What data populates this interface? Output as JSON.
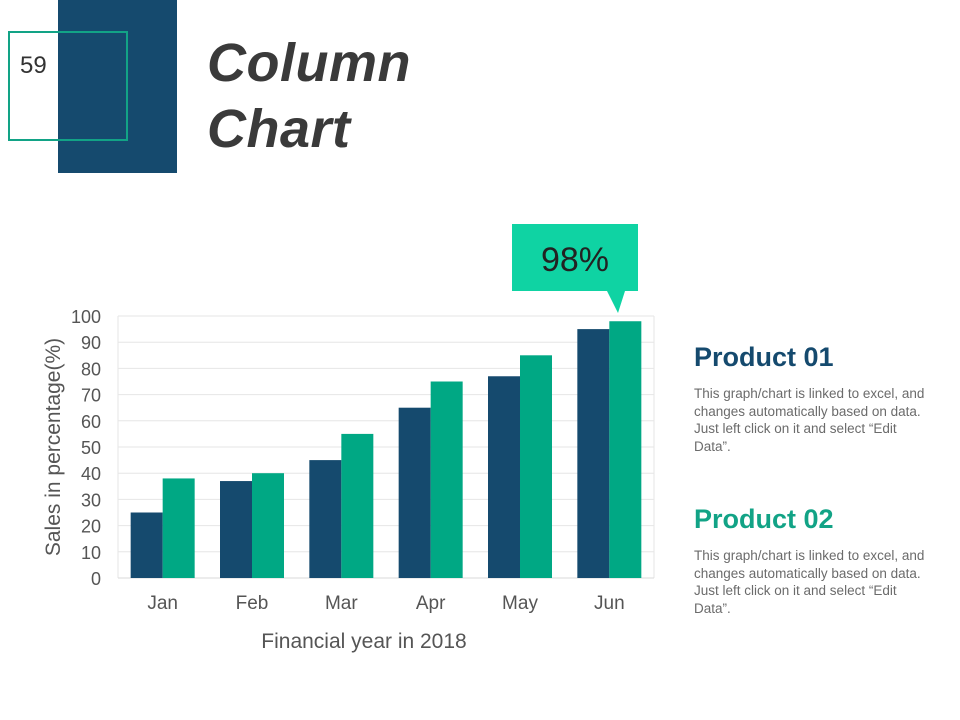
{
  "slide": {
    "number": "59",
    "title_line1": "Column",
    "title_line2": "Chart"
  },
  "colors": {
    "navy": "#154a6e",
    "teal": "#00a884",
    "callout": "#0fd3a3"
  },
  "callout": {
    "text": "98%"
  },
  "products": [
    {
      "name": "Product 01",
      "description": "This graph/chart is linked to excel, and changes automatically based on data. Just left click on it and select “Edit Data”."
    },
    {
      "name": "Product 02",
      "description": "This graph/chart is linked to excel, and changes automatically based on data. Just left click on it and select “Edit Data”."
    }
  ],
  "chart_data": {
    "type": "bar",
    "categories": [
      "Jan",
      "Feb",
      "Mar",
      "Apr",
      "May",
      "Jun"
    ],
    "series": [
      {
        "values": [
          25,
          37,
          45,
          65,
          77,
          95
        ],
        "color": "#154a6e"
      },
      {
        "values": [
          38,
          40,
          55,
          75,
          85,
          98
        ],
        "color": "#00a884"
      }
    ],
    "xlabel": "Financial year in 2018",
    "ylabel": "Sales in percentage(%)",
    "ylim": [
      0,
      100
    ],
    "yticks": [
      0,
      10,
      20,
      30,
      40,
      50,
      60,
      70,
      80,
      90,
      100
    ],
    "grid": true
  }
}
